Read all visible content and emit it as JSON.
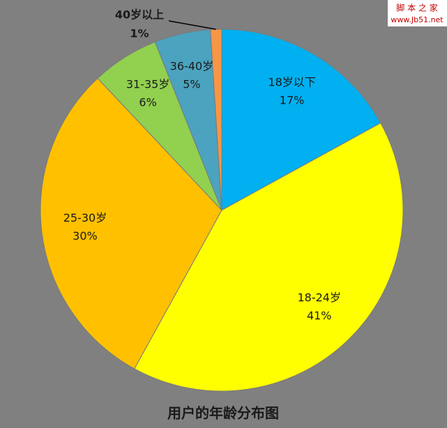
{
  "chart_data": {
    "type": "pie",
    "title": "用户的年龄分布图",
    "categories": [
      "18岁以下",
      "18-24岁",
      "25-30岁",
      "31-35岁",
      "36-40岁",
      "40岁以上"
    ],
    "values": [
      17,
      41,
      30,
      6,
      5,
      1
    ],
    "value_labels": [
      "17%",
      "41%",
      "30%",
      "6%",
      "5%",
      "1%"
    ],
    "colors": [
      "#00b0f0",
      "#ffff00",
      "#ffc000",
      "#92d050",
      "#4ba3bf",
      "#f79646"
    ]
  },
  "watermark": {
    "title": "脚 本 之 家",
    "url": "www.Jb51.net"
  }
}
